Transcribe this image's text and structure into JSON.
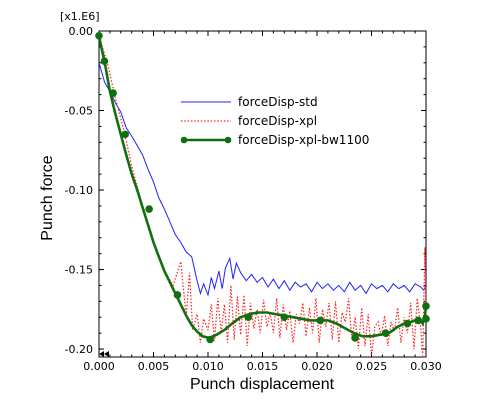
{
  "chart_data": {
    "type": "line",
    "xlabel": "Punch displacement",
    "ylabel": "Punch force",
    "scale_label": "[x1.E6]",
    "xlim": [
      0.0,
      0.03
    ],
    "ylim": [
      -0.205,
      0.0
    ],
    "x_ticks": [
      0.0,
      0.005,
      0.01,
      0.015,
      0.02,
      0.025,
      0.03
    ],
    "x_tick_labels": [
      "0.000",
      "0.005",
      "0.010",
      "0.015",
      "0.020",
      "0.025",
      "0.030"
    ],
    "y_ticks": [
      0.0,
      -0.05,
      -0.1,
      -0.15,
      -0.2
    ],
    "y_tick_labels": [
      "0.00",
      "-0.05",
      "-0.10",
      "-0.15",
      "-0.20"
    ],
    "grid": false,
    "legend_position": "center-right",
    "series": [
      {
        "name": "forceDisp-std",
        "color": "#2020ff",
        "style": "solid",
        "x": [
          0.0,
          0.0005,
          0.001,
          0.0015,
          0.002,
          0.0025,
          0.003,
          0.0035,
          0.004,
          0.0045,
          0.005,
          0.0055,
          0.006,
          0.0065,
          0.007,
          0.0075,
          0.008,
          0.0085,
          0.009,
          0.0093,
          0.0096,
          0.01,
          0.0103,
          0.0106,
          0.011,
          0.0113,
          0.0116,
          0.012,
          0.0123,
          0.0126,
          0.013,
          0.0135,
          0.014,
          0.0145,
          0.015,
          0.0155,
          0.016,
          0.0165,
          0.017,
          0.0175,
          0.018,
          0.0185,
          0.019,
          0.0195,
          0.02,
          0.0205,
          0.021,
          0.0215,
          0.022,
          0.0225,
          0.023,
          0.0235,
          0.024,
          0.0245,
          0.025,
          0.0255,
          0.026,
          0.0265,
          0.027,
          0.0275,
          0.028,
          0.0285,
          0.029,
          0.0295,
          0.0298,
          0.03
        ],
        "y": [
          -0.02,
          -0.032,
          -0.038,
          -0.045,
          -0.051,
          -0.061,
          -0.066,
          -0.072,
          -0.078,
          -0.087,
          -0.095,
          -0.105,
          -0.112,
          -0.12,
          -0.128,
          -0.133,
          -0.139,
          -0.142,
          -0.157,
          -0.165,
          -0.159,
          -0.166,
          -0.155,
          -0.162,
          -0.151,
          -0.162,
          -0.149,
          -0.143,
          -0.156,
          -0.146,
          -0.152,
          -0.157,
          -0.153,
          -0.158,
          -0.155,
          -0.161,
          -0.156,
          -0.162,
          -0.157,
          -0.163,
          -0.158,
          -0.161,
          -0.159,
          -0.164,
          -0.158,
          -0.162,
          -0.159,
          -0.163,
          -0.16,
          -0.164,
          -0.158,
          -0.163,
          -0.16,
          -0.165,
          -0.159,
          -0.162,
          -0.16,
          -0.164,
          -0.159,
          -0.162,
          -0.16,
          -0.164,
          -0.159,
          -0.161,
          -0.163,
          -0.16
        ]
      },
      {
        "name": "forceDisp-xpl",
        "color": "#ff2020",
        "style": "dotted",
        "x": [
          0.0,
          0.0008,
          0.0015,
          0.0023,
          0.003,
          0.0038,
          0.0045,
          0.0053,
          0.006,
          0.0068,
          0.0075,
          0.008,
          0.0083,
          0.0086,
          0.009,
          0.0093,
          0.0096,
          0.01,
          0.0103,
          0.0106,
          0.0109,
          0.0112,
          0.0115,
          0.0118,
          0.0121,
          0.0124,
          0.0127,
          0.013,
          0.0133,
          0.0136,
          0.0139,
          0.0142,
          0.0145,
          0.0148,
          0.0151,
          0.0154,
          0.0157,
          0.016,
          0.0163,
          0.0166,
          0.0169,
          0.0172,
          0.0175,
          0.0178,
          0.0181,
          0.0184,
          0.0187,
          0.019,
          0.0193,
          0.0196,
          0.0199,
          0.0202,
          0.0205,
          0.0208,
          0.0211,
          0.0214,
          0.0217,
          0.022,
          0.0223,
          0.0226,
          0.0229,
          0.0232,
          0.0235,
          0.0238,
          0.0241,
          0.0244,
          0.0247,
          0.025,
          0.0253,
          0.0256,
          0.0259,
          0.0262,
          0.0265,
          0.0268,
          0.0271,
          0.0274,
          0.0277,
          0.028,
          0.0283,
          0.0286,
          0.0289,
          0.0292,
          0.0295,
          0.0297,
          0.0299,
          0.03
        ],
        "y": [
          -0.003,
          -0.021,
          -0.042,
          -0.063,
          -0.085,
          -0.105,
          -0.123,
          -0.138,
          -0.151,
          -0.16,
          -0.145,
          -0.18,
          -0.152,
          -0.188,
          -0.178,
          -0.196,
          -0.181,
          -0.188,
          -0.172,
          -0.195,
          -0.168,
          -0.19,
          -0.172,
          -0.196,
          -0.16,
          -0.194,
          -0.167,
          -0.191,
          -0.166,
          -0.198,
          -0.171,
          -0.187,
          -0.175,
          -0.19,
          -0.169,
          -0.186,
          -0.177,
          -0.19,
          -0.168,
          -0.193,
          -0.172,
          -0.188,
          -0.176,
          -0.196,
          -0.178,
          -0.184,
          -0.171,
          -0.192,
          -0.174,
          -0.19,
          -0.168,
          -0.196,
          -0.175,
          -0.186,
          -0.171,
          -0.194,
          -0.17,
          -0.196,
          -0.177,
          -0.183,
          -0.168,
          -0.194,
          -0.18,
          -0.2,
          -0.174,
          -0.198,
          -0.178,
          -0.204,
          -0.186,
          -0.183,
          -0.192,
          -0.179,
          -0.198,
          -0.183,
          -0.189,
          -0.174,
          -0.196,
          -0.18,
          -0.19,
          -0.171,
          -0.2,
          -0.168,
          -0.186,
          -0.204,
          -0.136,
          -0.175
        ]
      },
      {
        "name": "forceDisp-xpl-bw1100",
        "color": "#107010",
        "style": "solid-markers",
        "x": [
          0.0,
          0.0002,
          0.0005,
          0.001,
          0.0015,
          0.002,
          0.0025,
          0.003,
          0.0035,
          0.004,
          0.0045,
          0.005,
          0.0055,
          0.006,
          0.0065,
          0.007,
          0.0075,
          0.008,
          0.0085,
          0.009,
          0.0095,
          0.0101,
          0.0108,
          0.0115,
          0.0122,
          0.013,
          0.0138,
          0.0146,
          0.0154,
          0.0162,
          0.017,
          0.0178,
          0.0186,
          0.0194,
          0.0202,
          0.021,
          0.0218,
          0.0226,
          0.0234,
          0.0242,
          0.025,
          0.0258,
          0.0266,
          0.0274,
          0.028,
          0.0286,
          0.029,
          0.0294,
          0.0297,
          0.0299,
          0.03
        ],
        "y": [
          -0.003,
          -0.01,
          -0.019,
          -0.038,
          -0.052,
          -0.065,
          -0.078,
          -0.09,
          -0.1,
          -0.111,
          -0.122,
          -0.133,
          -0.142,
          -0.151,
          -0.158,
          -0.165,
          -0.172,
          -0.179,
          -0.185,
          -0.189,
          -0.192,
          -0.193,
          -0.191,
          -0.188,
          -0.184,
          -0.18,
          -0.178,
          -0.177,
          -0.177,
          -0.178,
          -0.179,
          -0.18,
          -0.181,
          -0.182,
          -0.182,
          -0.182,
          -0.184,
          -0.187,
          -0.19,
          -0.192,
          -0.192,
          -0.191,
          -0.19,
          -0.186,
          -0.184,
          -0.183,
          -0.182,
          -0.181,
          -0.184,
          -0.179,
          -0.173
        ]
      }
    ],
    "marker_x": [
      0.0,
      0.0005,
      0.0013,
      0.0024,
      0.0046,
      0.0072,
      0.0102,
      0.0137,
      0.017,
      0.0203,
      0.0235,
      0.0263,
      0.0283,
      0.0293,
      0.03,
      0.03
    ],
    "marker_y": [
      -0.003,
      -0.019,
      -0.039,
      -0.065,
      -0.112,
      -0.166,
      -0.194,
      -0.18,
      -0.18,
      -0.182,
      -0.193,
      -0.19,
      -0.184,
      -0.182,
      -0.181,
      -0.173
    ]
  }
}
